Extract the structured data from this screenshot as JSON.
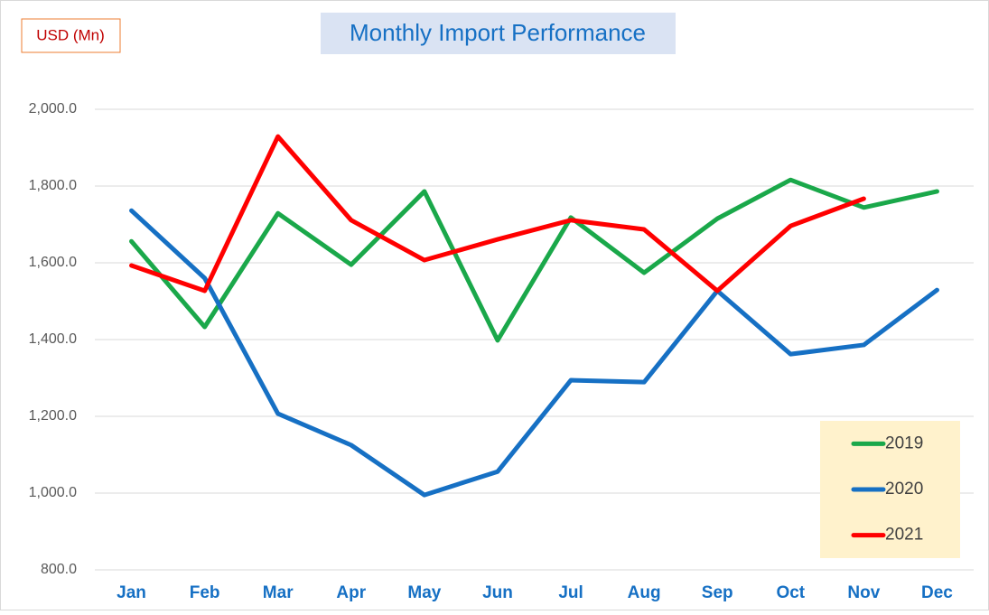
{
  "chart_data": {
    "type": "line",
    "title": "Monthly Import Performance",
    "unit_label": "USD (Mn)",
    "categories": [
      "Jan",
      "Feb",
      "Mar",
      "Apr",
      "May",
      "Jun",
      "Jul",
      "Aug",
      "Sep",
      "Oct",
      "Nov",
      "Dec"
    ],
    "series": [
      {
        "name": "2019",
        "color": "#1aa84a",
        "values": [
          1656,
          1433,
          1729,
          1595,
          1786,
          1398,
          1718,
          1574,
          1715,
          1816,
          1744,
          1786
        ]
      },
      {
        "name": "2020",
        "color": "#1670c4",
        "values": [
          1736,
          1560,
          1207,
          1125,
          995,
          1056,
          1294,
          1289,
          1527,
          1362,
          1386,
          1529
        ]
      },
      {
        "name": "2021",
        "color": "#ff0000",
        "values": [
          1593,
          1527,
          1929,
          1711,
          1607,
          1661,
          1711,
          1687,
          1527,
          1696,
          1767,
          null
        ]
      }
    ],
    "ylim": [
      800,
      2000
    ],
    "yticks": [
      {
        "value": 800,
        "label": "800.0"
      },
      {
        "value": 1000,
        "label": "1,000.0"
      },
      {
        "value": 1200,
        "label": "1,200.0"
      },
      {
        "value": 1400,
        "label": "1,400.0"
      },
      {
        "value": 1600,
        "label": "1,600.0"
      },
      {
        "value": 1800,
        "label": "1,800.0"
      },
      {
        "value": 2000,
        "label": "2,000.0"
      }
    ],
    "grid": true,
    "legend_position": "lower right"
  }
}
